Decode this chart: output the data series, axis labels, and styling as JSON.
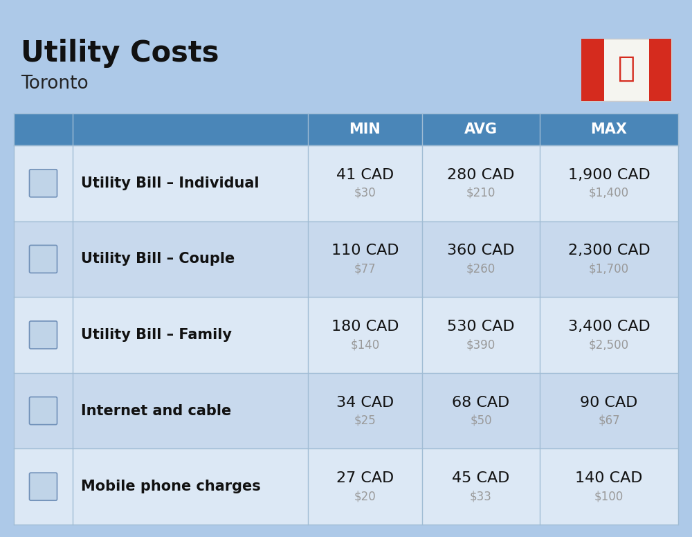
{
  "title": "Utility Costs",
  "subtitle": "Toronto",
  "background_color": "#adc9e8",
  "header_bg_color": "#4a86b8",
  "header_text_color": "#ffffff",
  "row_bg_color_1": "#dce8f5",
  "row_bg_color_2": "#c8d9ed",
  "icon_col_bg_1": "#dce8f5",
  "icon_col_bg_2": "#c8d9ed",
  "cell_border_color": "#a0bcd4",
  "title_color": "#111111",
  "subtitle_color": "#222222",
  "label_color": "#111111",
  "value_color": "#111111",
  "sub_value_color": "#999999",
  "headers": [
    "MIN",
    "AVG",
    "MAX"
  ],
  "rows": [
    {
      "label": "Utility Bill – Individual",
      "min_cad": "41 CAD",
      "min_usd": "$30",
      "avg_cad": "280 CAD",
      "avg_usd": "$210",
      "max_cad": "1,900 CAD",
      "max_usd": "$1,400"
    },
    {
      "label": "Utility Bill – Couple",
      "min_cad": "110 CAD",
      "min_usd": "$77",
      "avg_cad": "360 CAD",
      "avg_usd": "$260",
      "max_cad": "2,300 CAD",
      "max_usd": "$1,700"
    },
    {
      "label": "Utility Bill – Family",
      "min_cad": "180 CAD",
      "min_usd": "$140",
      "avg_cad": "530 CAD",
      "avg_usd": "$390",
      "max_cad": "3,400 CAD",
      "max_usd": "$2,500"
    },
    {
      "label": "Internet and cable",
      "min_cad": "34 CAD",
      "min_usd": "$25",
      "avg_cad": "68 CAD",
      "avg_usd": "$50",
      "max_cad": "90 CAD",
      "max_usd": "$67"
    },
    {
      "label": "Mobile phone charges",
      "min_cad": "27 CAD",
      "min_usd": "$20",
      "avg_cad": "45 CAD",
      "avg_usd": "$33",
      "max_cad": "140 CAD",
      "max_usd": "$100"
    }
  ],
  "title_fontsize": 30,
  "subtitle_fontsize": 19,
  "header_fontsize": 15,
  "label_fontsize": 15,
  "value_fontsize": 16,
  "sub_value_fontsize": 12,
  "flag_red": "#d52b1e",
  "flag_white": "#f5f5f0"
}
